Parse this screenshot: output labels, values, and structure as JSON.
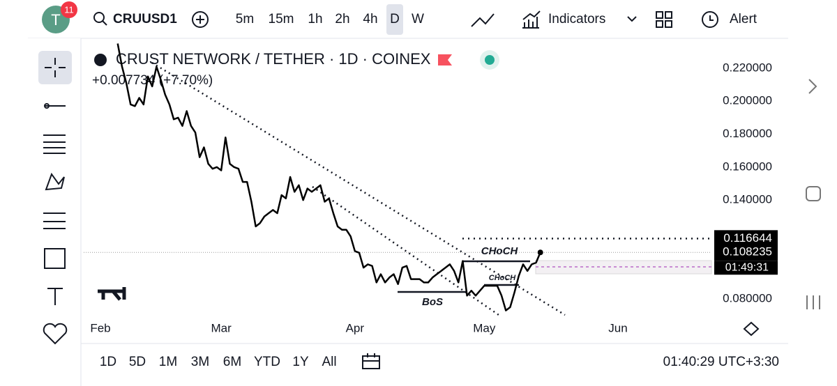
{
  "toolbar": {
    "badge": "11",
    "avatar": "T",
    "symbol": "CRUUSD1",
    "intervals": [
      "5m",
      "15m",
      "1h",
      "2h",
      "4h",
      "D",
      "W"
    ],
    "indicators": "Indicators",
    "alert": "Alert"
  },
  "chart_data": {
    "type": "line",
    "title": "CRUST NETWORK / TETHER · 1D · COINEX",
    "subtitle": "+0.007734 (+7.70%)",
    "categories": [
      "Feb",
      null,
      null,
      null,
      null,
      null,
      null,
      null,
      null,
      null,
      null,
      null,
      null,
      null,
      null,
      null,
      null,
      null,
      null,
      null,
      null,
      null,
      null,
      null,
      null,
      null,
      null,
      null,
      "Mar",
      null,
      null,
      null,
      null,
      null,
      null,
      null,
      null,
      null,
      null,
      null,
      null,
      null,
      null,
      null,
      null,
      null,
      null,
      null,
      null,
      null,
      null,
      null,
      null,
      null,
      null,
      null,
      null,
      null,
      null,
      "Apr",
      null,
      null,
      null,
      null,
      null,
      null,
      null,
      null,
      null,
      null,
      null,
      null,
      null,
      null,
      null,
      null,
      null,
      null,
      null,
      null,
      null,
      null,
      null,
      null,
      null,
      null,
      null,
      null,
      null,
      "May",
      null,
      null,
      null,
      null,
      null,
      null,
      null,
      null,
      null,
      null,
      null,
      null,
      null,
      null,
      null,
      null,
      null,
      null,
      null,
      null,
      null,
      null,
      null,
      null,
      null,
      null,
      null,
      null,
      null,
      null,
      "Jun"
    ],
    "series": [
      {
        "color": "#000000",
        "values": [
          null,
          null,
          null,
          null,
          0.235,
          0.221,
          0.211,
          0.198,
          0.197,
          0.202,
          0.198,
          0.215,
          0.209,
          0.221,
          0.213,
          0.204,
          0.198,
          0.189,
          0.19,
          0.185,
          0.194,
          0.185,
          0.181,
          0.166,
          0.172,
          0.162,
          0.159,
          0.16,
          0.158,
          0.178,
          0.162,
          0.16,
          0.159,
          0.151,
          0.151,
          0.139,
          0.124,
          0.126,
          0.13,
          0.132,
          0.134,
          0.132,
          0.143,
          0.141,
          0.154,
          0.145,
          0.149,
          0.14,
          0.147,
          0.145,
          0.147,
          0.149,
          0.139,
          0.141,
          0.132,
          0.124,
          0.122,
          0.122,
          0.118,
          0.109,
          0.108,
          0.099,
          0.101,
          0.1,
          0.09,
          0.095,
          0.09,
          0.093,
          0.095,
          0.089,
          0.099,
          0.1,
          0.092,
          0.092,
          0.092,
          0.09,
          0.09,
          0.093,
          0.095,
          0.097,
          0.099,
          0.101,
          0.097,
          0.09,
          0.103,
          0.082,
          0.085,
          0.082,
          0.085,
          0.088,
          0.088,
          0.088,
          0.088,
          0.082,
          0.073,
          0.075,
          0.084,
          0.094,
          0.101,
          0.097,
          0.101,
          0.102,
          0.108235,
          null,
          null,
          null,
          null,
          null,
          null,
          null,
          null,
          null,
          null,
          null,
          null,
          null,
          null,
          null,
          null,
          null,
          null
        ]
      }
    ],
    "ylim": [
      0.0669,
      0.2352
    ],
    "yticks": [
      {
        "value": 0.22,
        "label": "0.220000"
      },
      {
        "value": 0.2,
        "label": "0.200000"
      },
      {
        "value": 0.18,
        "label": "0.180000"
      },
      {
        "value": 0.16,
        "label": "0.160000"
      },
      {
        "value": 0.14,
        "label": "0.140000"
      },
      {
        "value": 0.08,
        "label": "0.080000"
      }
    ],
    "price_labels": [
      0.116644,
      0.108235
    ],
    "countdown": "01:49:31",
    "annotations": [
      "CHoCH",
      "CHoCH",
      "BoS"
    ]
  },
  "range_bar": {
    "ranges": [
      "1D",
      "5D",
      "1M",
      "3M",
      "6M",
      "YTD",
      "1Y",
      "All"
    ],
    "clock": "01:40:29 UTC+3:30"
  }
}
